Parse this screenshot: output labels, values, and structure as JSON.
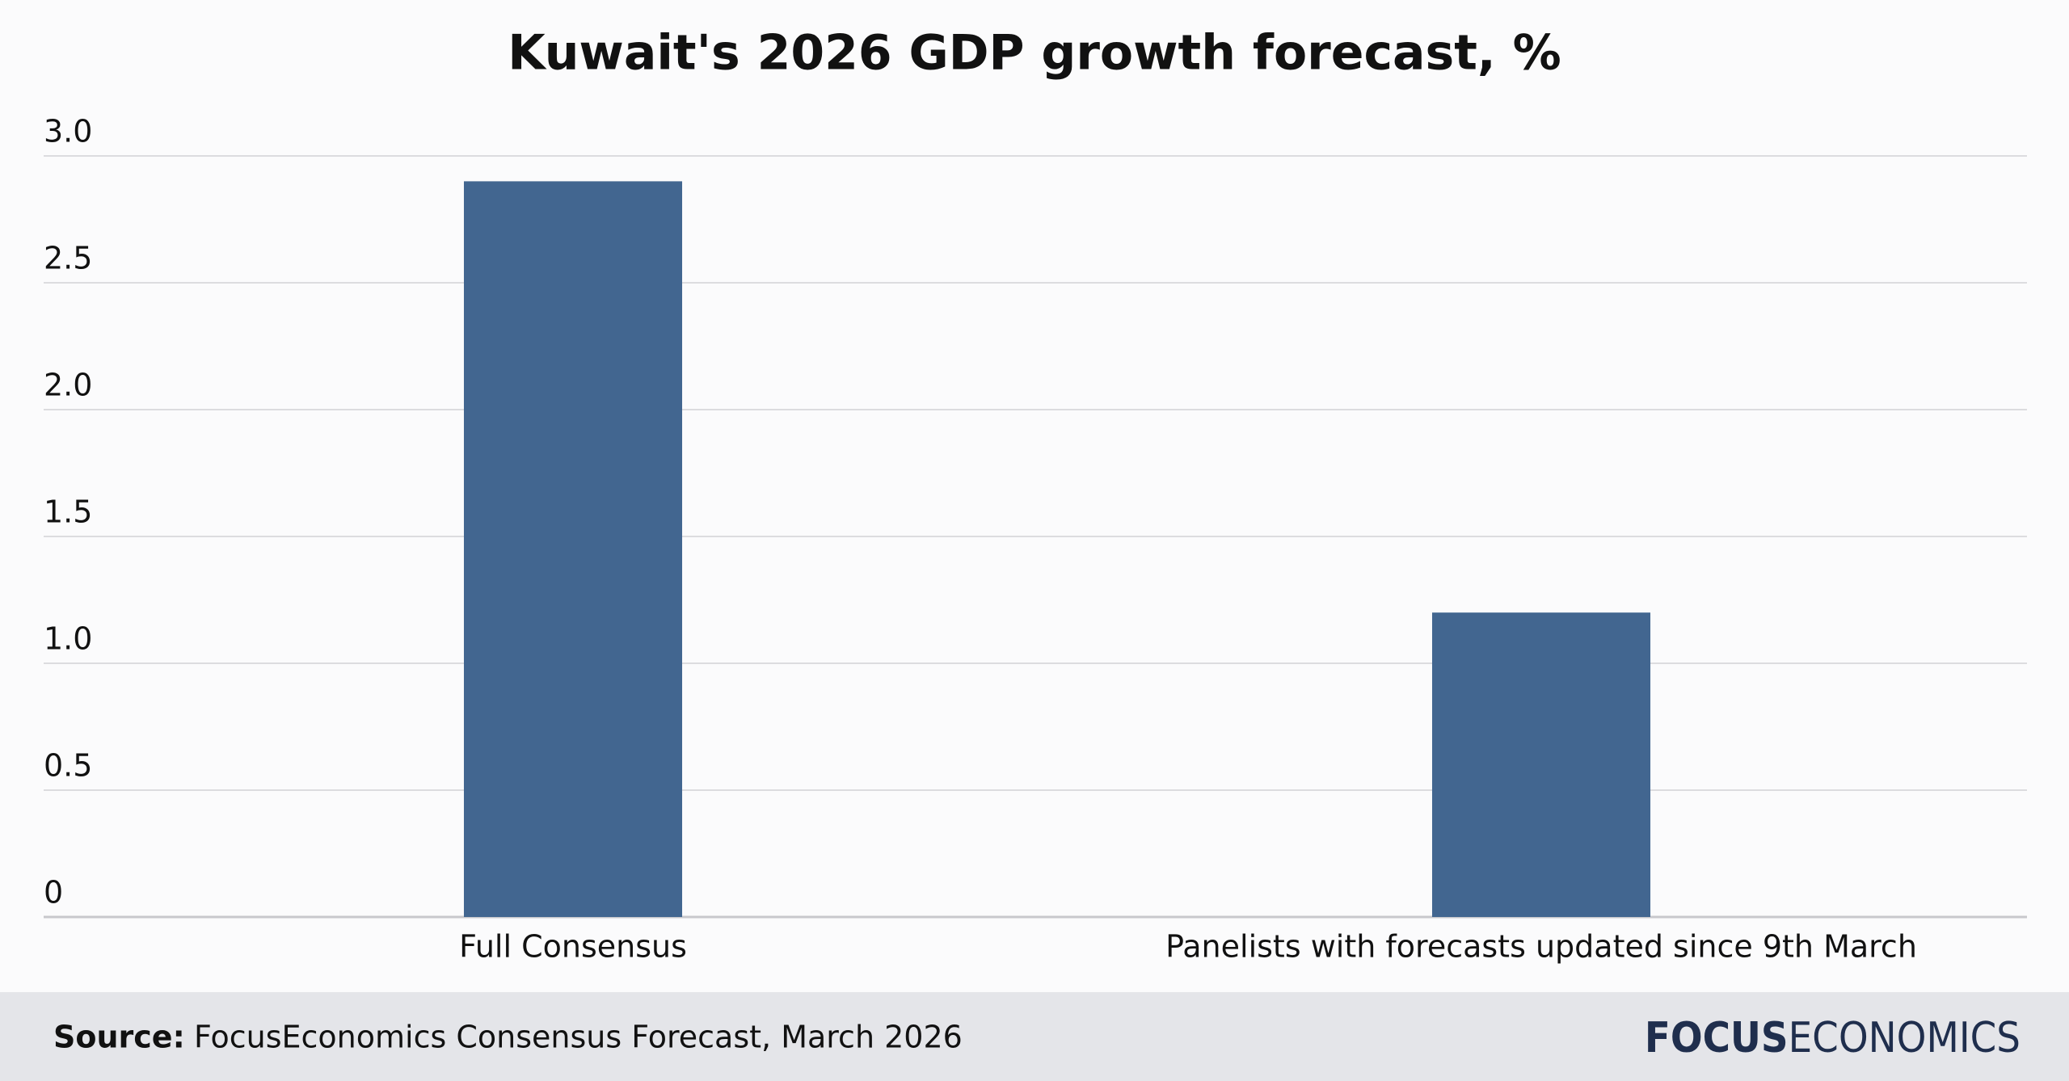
{
  "chart_data": {
    "type": "bar",
    "title": "Kuwait's 2026 GDP growth forecast, %",
    "categories": [
      "Full Consensus",
      "Panelists with forecasts updated since 9th March"
    ],
    "values": [
      2.9,
      1.2
    ],
    "color": "#426690",
    "ylim": [
      0,
      3
    ],
    "yticks": [
      {
        "value": 3,
        "label": "3.0"
      },
      {
        "value": 2.5,
        "label": "2.5"
      },
      {
        "value": 2,
        "label": "2.0"
      },
      {
        "value": 1.5,
        "label": "1.5"
      },
      {
        "value": 1,
        "label": "1.0"
      },
      {
        "value": 0.5,
        "label": "0.5"
      },
      0
    ],
    "grid": true,
    "source_label": "Source:",
    "source": "FocusEconomics Consensus Forecast, March 2026",
    "logo": [
      "FOCUS",
      "ECONOMICS"
    ]
  }
}
